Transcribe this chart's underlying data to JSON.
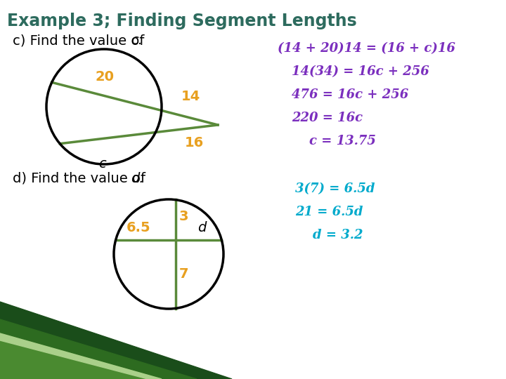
{
  "title": "Example 3; Finding Segment Lengths",
  "title_color": "#2d6b5e",
  "title_fontsize": 17,
  "bg_color": "#ffffff",
  "part_label_color": "#000000",
  "part_label_fontsize": 14,
  "circle_color": "#000000",
  "circle_linewidth": 2.5,
  "green_color": "#5a8a3a",
  "orange_color": "#e8a020",
  "purple_color": "#7b2fbe",
  "cyan_color": "#00aacc",
  "eq_c1": "(14 + 20)14 = (16 + c)16",
  "eq_c2": "14(34) = 16c + 256",
  "eq_c3": "476 = 16c + 256",
  "eq_c4": "220 = 16c",
  "eq_c5": "c = 13.75",
  "eq_d1": "3(7) = 6.5d",
  "eq_d2": "21 = 6.5d",
  "eq_d3": "d = 3.2"
}
